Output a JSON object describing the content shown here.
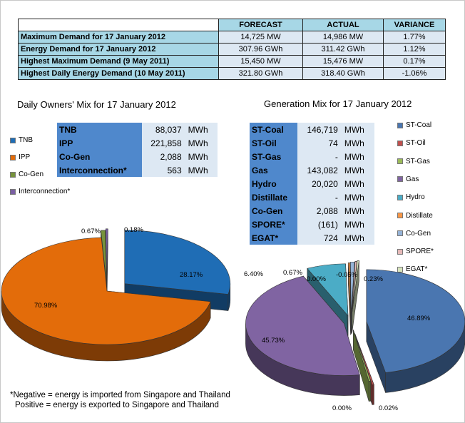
{
  "summary": {
    "headers": [
      "",
      "FORECAST",
      "ACTUAL",
      "VARIANCE"
    ],
    "rows": [
      {
        "label": "Maximum Demand for 17 January 2012",
        "forecast": "14,725  MW",
        "actual": "14,986  MW",
        "variance": "1.77%"
      },
      {
        "label": "Energy Demand for 17 January 2012",
        "forecast": "307.96  GWh",
        "actual": "311.42  GWh",
        "variance": "1.12%"
      },
      {
        "label": "Highest Maximum Demand (9 May 2011)",
        "forecast": "15,450  MW",
        "actual": "15,476  MW",
        "variance": "0.17%"
      },
      {
        "label": "Highest Daily Energy Demand (10 May 2011)",
        "forecast": "321.80  GWh",
        "actual": "318.40  GWh",
        "variance": "-1.06%"
      }
    ]
  },
  "owners_title": "Daily Owners' Mix for 17 January 2012",
  "generation_title": "Generation Mix for 17 January 2012",
  "owners_table": [
    {
      "name": "TNB",
      "value": "88,037",
      "unit": "MWh"
    },
    {
      "name": "IPP",
      "value": "221,858",
      "unit": "MWh"
    },
    {
      "name": "Co-Gen",
      "value": "2,088",
      "unit": "MWh"
    },
    {
      "name": "Interconnection*",
      "value": "563",
      "unit": "MWh"
    }
  ],
  "generation_table": [
    {
      "name": "ST-Coal",
      "value": "146,719",
      "unit": "MWh"
    },
    {
      "name": "ST-Oil",
      "value": "74",
      "unit": "MWh"
    },
    {
      "name": "ST-Gas",
      "value": "-",
      "unit": "MWh"
    },
    {
      "name": "Gas",
      "value": "143,082",
      "unit": "MWh"
    },
    {
      "name": "Hydro",
      "value": "20,020",
      "unit": "MWh"
    },
    {
      "name": "Distillate",
      "value": "-",
      "unit": "MWh"
    },
    {
      "name": "Co-Gen",
      "value": "2,088",
      "unit": "MWh"
    },
    {
      "name": "SPORE*",
      "value": "(161)",
      "unit": "MWh"
    },
    {
      "name": "EGAT*",
      "value": "724",
      "unit": "MWh"
    }
  ],
  "chart_data": [
    {
      "type": "pie",
      "title": "Daily Owners' Mix for 17 January 2012",
      "categories": [
        "TNB",
        "IPP",
        "Co-Gen",
        "Interconnection*"
      ],
      "values": [
        28.17,
        70.98,
        0.67,
        0.18
      ],
      "labels": [
        "28.17%",
        "70.98%",
        "0.67%",
        "0.18%"
      ],
      "colors": [
        "#1f6db5",
        "#e36c0a",
        "#77933c",
        "#7a5fa3"
      ],
      "legend_position": "left",
      "three_d": true,
      "exploded": true
    },
    {
      "type": "pie",
      "title": "Generation Mix for 17 January 2012",
      "categories": [
        "ST-Coal",
        "ST-Oil",
        "ST-Gas",
        "Gas",
        "Hydro",
        "Distillate",
        "Co-Gen",
        "SPORE*",
        "EGAT*"
      ],
      "values": [
        46.89,
        0.02,
        0.0,
        45.73,
        6.4,
        0.0,
        0.67,
        -0.05,
        0.23
      ],
      "labels": [
        "46.89%",
        "0.02%",
        "0.00%",
        "45.73%",
        "6.40%",
        "0.00%",
        "0.67%",
        "-0.05%",
        "0.23%"
      ],
      "colors": [
        "#4a76b0",
        "#c0504d",
        "#9bbb59",
        "#8064a2",
        "#4bacc6",
        "#f79646",
        "#95b3d7",
        "#e6b9b8",
        "#d7e4bd"
      ],
      "legend_position": "right",
      "three_d": true,
      "exploded": true
    }
  ],
  "note": {
    "line1": "*Negative = energy is imported from Singapore and Thailand",
    "line2": "Positive = energy is exported to Singapore and Thailand"
  }
}
